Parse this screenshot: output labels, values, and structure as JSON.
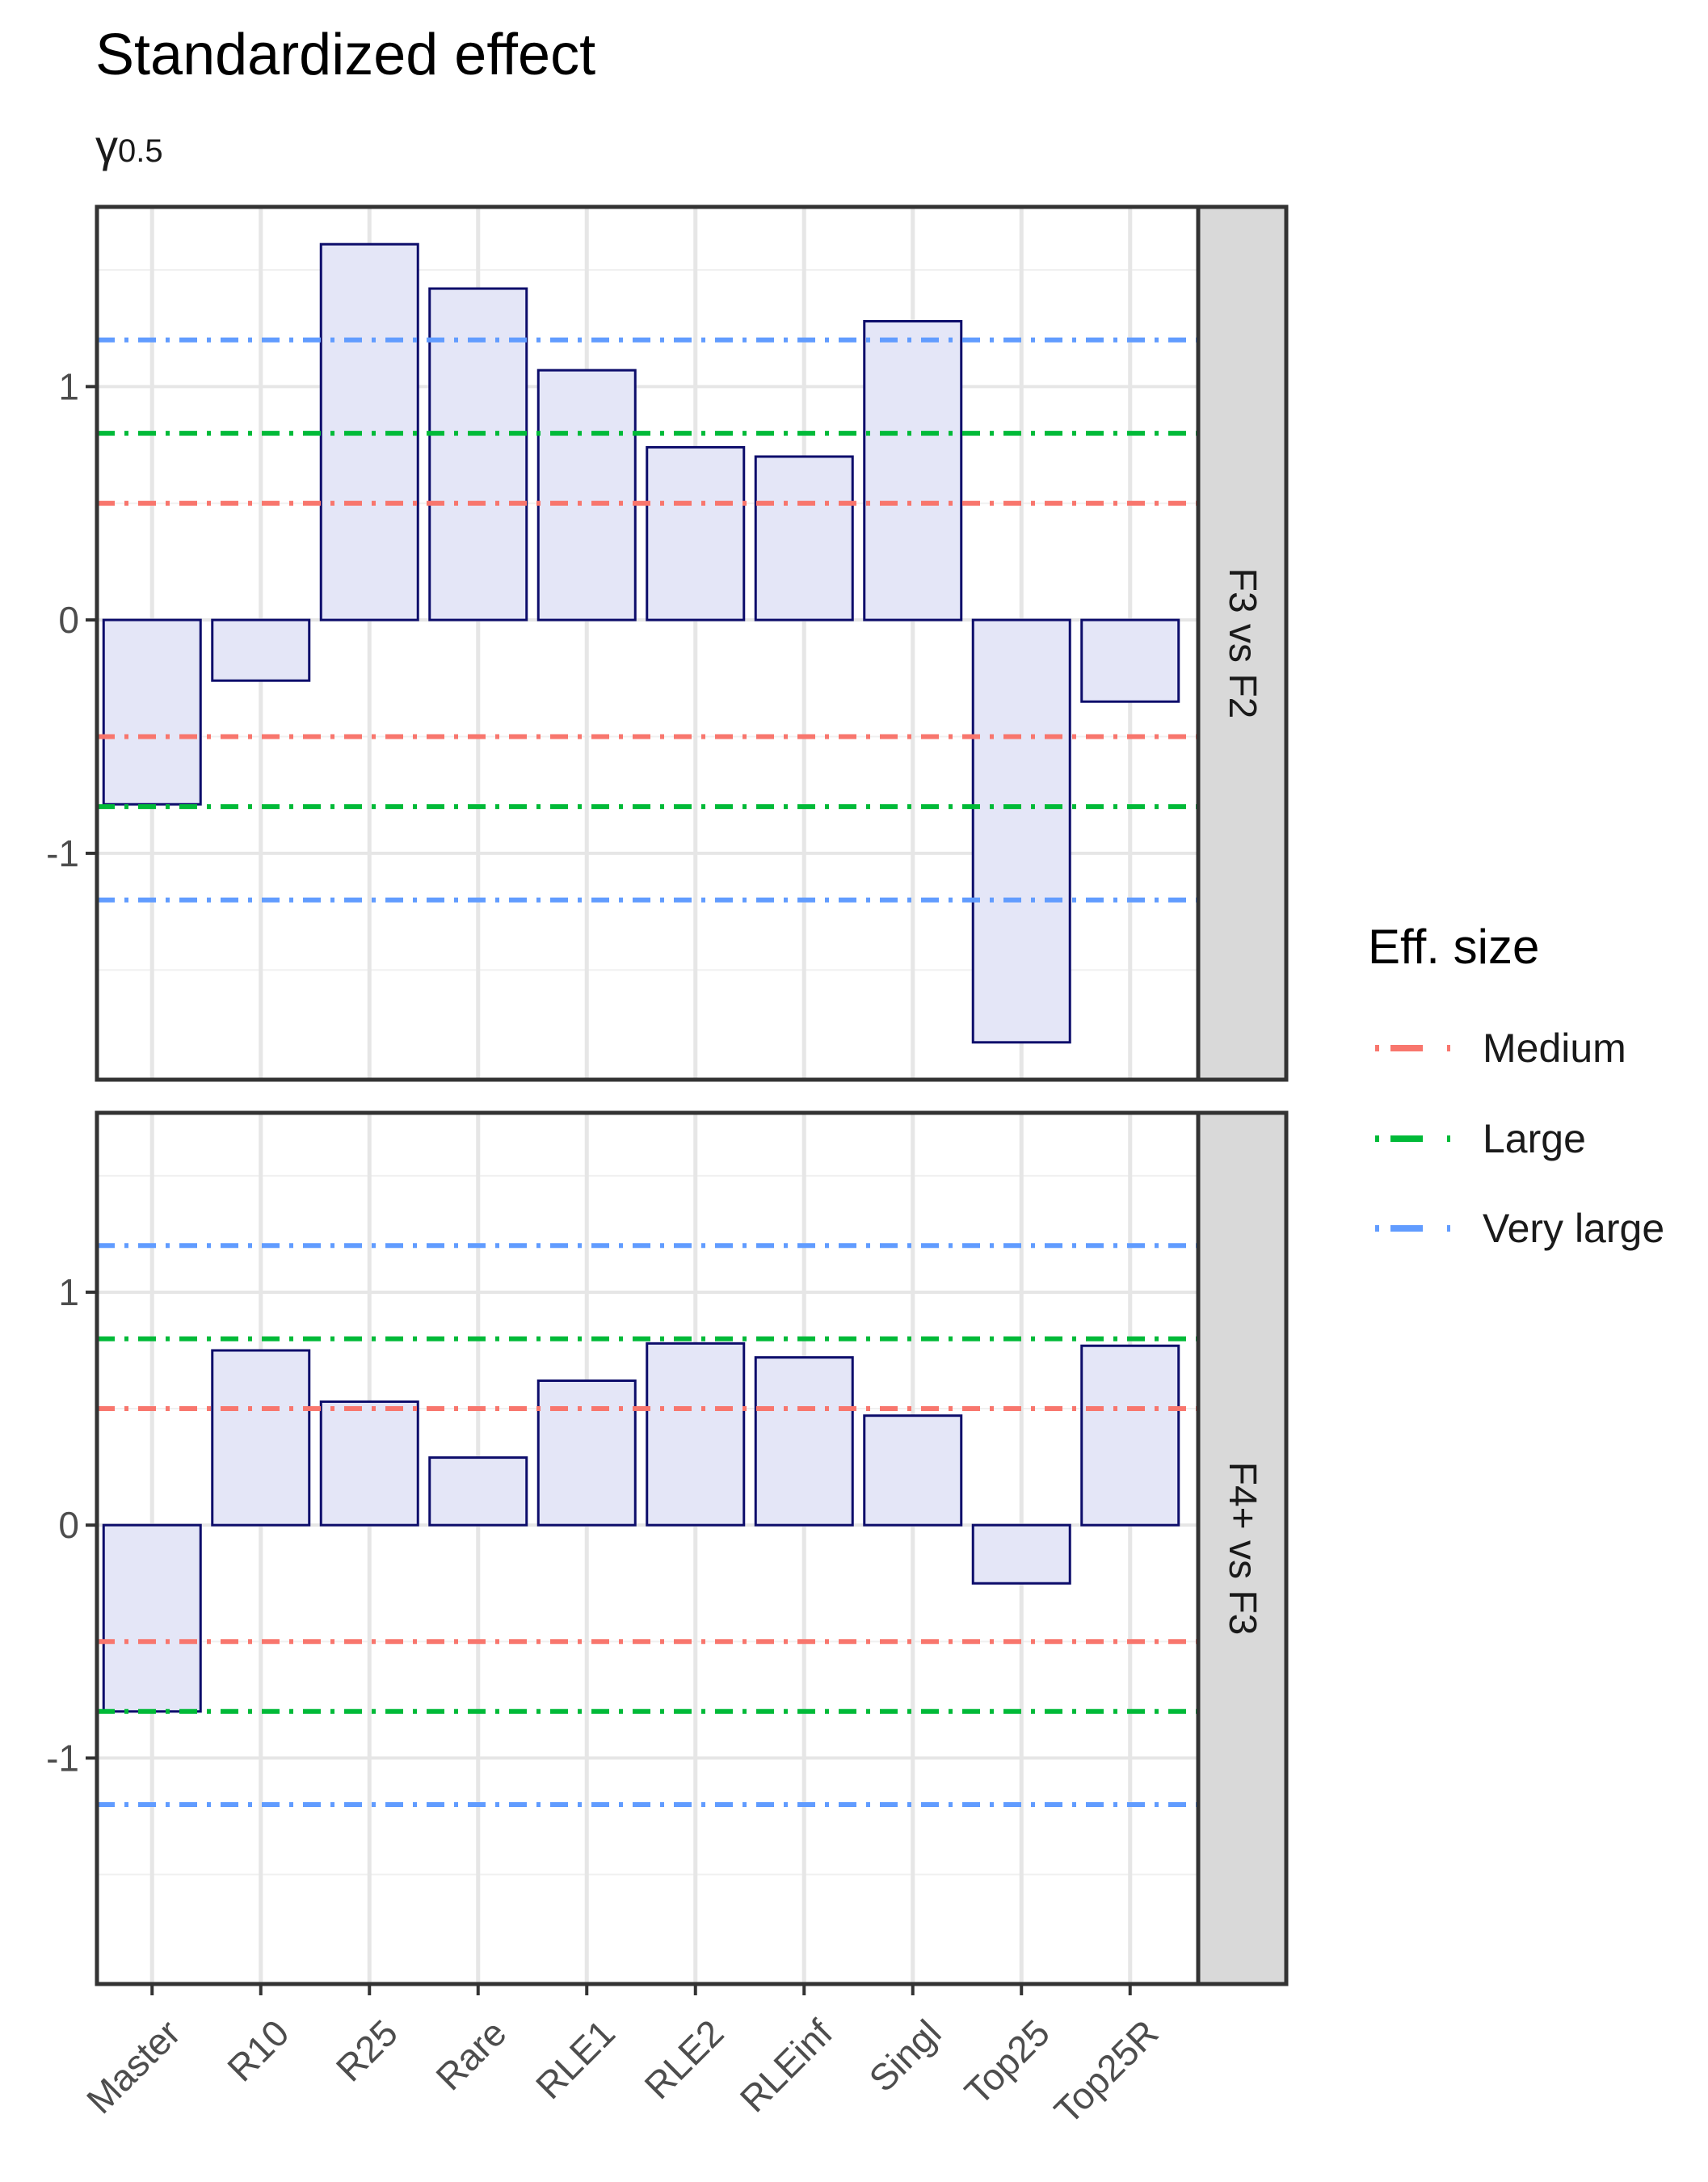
{
  "chart_data": {
    "type": "bar",
    "title": "Standardized effect",
    "subtitle_symbol": "γ",
    "subtitle_sub": "0.5",
    "categories": [
      "Master",
      "R10",
      "R25",
      "Rare",
      "RLE1",
      "RLE2",
      "RLEinf",
      "Singl",
      "Top25",
      "Top25R"
    ],
    "ylim": [
      -1.97,
      1.77
    ],
    "yticks": [
      -1,
      0,
      1
    ],
    "ytick_labels": [
      "-1",
      "0",
      "1"
    ],
    "grid": true,
    "bar_fill": "#e4e6f7",
    "bar_stroke": "#0d0d6b",
    "panels": [
      {
        "label": "F3 vs F2",
        "values": [
          -0.79,
          -0.26,
          1.61,
          1.42,
          1.07,
          0.74,
          0.7,
          1.28,
          -1.81,
          -0.35
        ]
      },
      {
        "label": "F4+ vs F3",
        "values": [
          -0.8,
          0.75,
          0.53,
          0.29,
          0.62,
          0.78,
          0.72,
          0.47,
          -0.25,
          0.77
        ]
      }
    ],
    "reference_lines": [
      {
        "name": "Medium",
        "value": 0.5,
        "color": "#f8766d"
      },
      {
        "name": "Large",
        "value": 0.8,
        "color": "#00ba38"
      },
      {
        "name": "Very large",
        "value": 1.2,
        "color": "#619cff"
      }
    ],
    "legend": {
      "title": "Eff. size",
      "position": "right",
      "items": [
        "Medium",
        "Large",
        "Very large"
      ]
    }
  }
}
